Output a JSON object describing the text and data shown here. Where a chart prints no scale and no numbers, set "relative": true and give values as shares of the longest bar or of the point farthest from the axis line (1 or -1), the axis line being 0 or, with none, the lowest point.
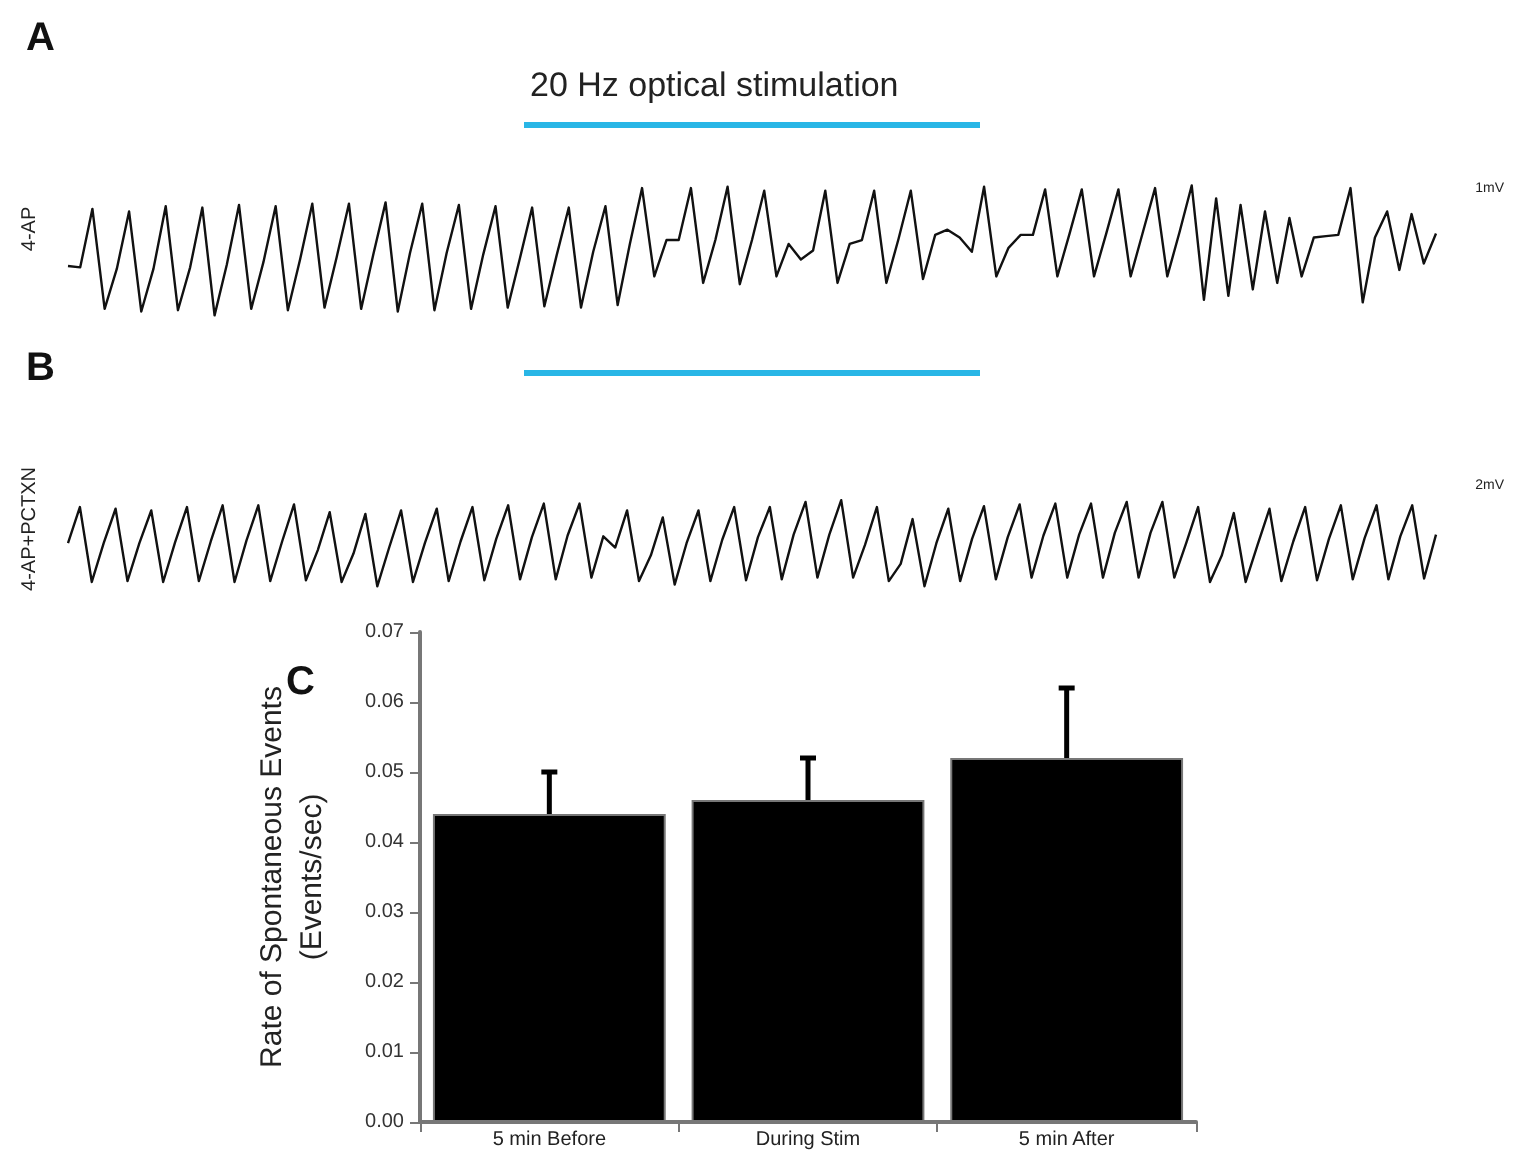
{
  "chart_data": [
    {
      "type": "line",
      "title": "A",
      "ylabel": "4-AP",
      "relative": true,
      "marker": "none",
      "annotations": [
        "20 Hz optical stimulation",
        "1mV"
      ],
      "categories": [
        null,
        null,
        null,
        null,
        null,
        null,
        null,
        null,
        null,
        null,
        null,
        null,
        null,
        null,
        null,
        null,
        null,
        null,
        null,
        null,
        null,
        null,
        null,
        null,
        null,
        null,
        null,
        null,
        null,
        null,
        null,
        null,
        null,
        null,
        null,
        null,
        null,
        null,
        null,
        null,
        null,
        null,
        null,
        null,
        null,
        null,
        null,
        null,
        null,
        null,
        null,
        null,
        null,
        null,
        null,
        null,
        null,
        null,
        null,
        null,
        null,
        null,
        null,
        null,
        null,
        null,
        null,
        null,
        null,
        null,
        null,
        null,
        null,
        null,
        null,
        null,
        null,
        null,
        null,
        null,
        null,
        null,
        null,
        null,
        null,
        null,
        null,
        null,
        null,
        null,
        null,
        null,
        null,
        null,
        null,
        null,
        null,
        null,
        null,
        null,
        null,
        null,
        null,
        null,
        null,
        null,
        null,
        null,
        null,
        null,
        null,
        null,
        null
      ],
      "series": [
        {
          "color": "#111111",
          "values": [
            0.38,
            0.37,
            0.82,
            0.05,
            0.36,
            0.8,
            0.03,
            0.36,
            0.84,
            0.04,
            0.37,
            0.83,
            0,
            0.39,
            0.85,
            0.05,
            0.41,
            0.84,
            0.04,
            0.43,
            0.86,
            0.06,
            0.45,
            0.86,
            0.05,
            0.47,
            0.87,
            0.03,
            0.48,
            0.86,
            0.04,
            0.48,
            0.85,
            0.05,
            0.47,
            0.84,
            0.06,
            0.44,
            0.83,
            0.07,
            0.46,
            0.83,
            0.06,
            0.49,
            0.84,
            0.08,
            0.55,
            0.98,
            0.3,
            0.58,
            0.58,
            0.98,
            0.25,
            0.58,
            0.99,
            0.24,
            0.58,
            0.96,
            0.3,
            0.55,
            0.43,
            0.5,
            0.96,
            0.25,
            0.55,
            0.58,
            0.96,
            0.25,
            0.59,
            0.96,
            0.28,
            0.62,
            0.66,
            0.6,
            0.49,
            0.99,
            0.3,
            0.52,
            0.62,
            0.62,
            0.97,
            0.3,
            0.63,
            0.97,
            0.3,
            0.63,
            0.97,
            0.3,
            0.64,
            0.98,
            0.3,
            0.64,
            1,
            0.12,
            0.9,
            0.15,
            0.85,
            0.2,
            0.8,
            0.25,
            0.75,
            0.3,
            0.6,
            0.61,
            0.62,
            0.98,
            0.1,
            0.6,
            0.8,
            0.35,
            0.78,
            0.4,
            0.63
          ]
        }
      ]
    },
    {
      "type": "line",
      "title": "B",
      "ylabel": "4-AP+PCTXN",
      "relative": true,
      "marker": "none",
      "annotations": [
        "2mV"
      ],
      "categories": [
        null,
        null,
        null,
        null,
        null,
        null,
        null,
        null,
        null,
        null,
        null,
        null,
        null,
        null,
        null,
        null,
        null,
        null,
        null,
        null,
        null,
        null,
        null,
        null,
        null,
        null,
        null,
        null,
        null,
        null,
        null,
        null,
        null,
        null,
        null,
        null,
        null,
        null,
        null,
        null,
        null,
        null,
        null,
        null,
        null,
        null,
        null,
        null,
        null,
        null,
        null,
        null,
        null,
        null,
        null,
        null,
        null,
        null,
        null,
        null,
        null,
        null,
        null,
        null,
        null,
        null,
        null,
        null,
        null,
        null,
        null,
        null,
        null,
        null,
        null,
        null,
        null,
        null,
        null,
        null,
        null,
        null,
        null,
        null,
        null,
        null,
        null,
        null,
        null,
        null,
        null,
        null,
        null,
        null,
        null,
        null,
        null,
        null,
        null,
        null,
        null,
        null,
        null,
        null,
        null,
        null,
        null,
        null,
        null,
        null,
        null,
        null,
        null,
        null,
        null,
        null
      ],
      "series": [
        {
          "color": "#111111",
          "values": [
            0.5,
            0.92,
            0.05,
            0.5,
            0.9,
            0.06,
            0.5,
            0.88,
            0.05,
            0.51,
            0.92,
            0.06,
            0.52,
            0.94,
            0.05,
            0.53,
            0.94,
            0.06,
            0.52,
            0.95,
            0.07,
            0.42,
            0.86,
            0.05,
            0.38,
            0.84,
            0,
            0.45,
            0.88,
            0.05,
            0.5,
            0.9,
            0.06,
            0.52,
            0.92,
            0.07,
            0.55,
            0.94,
            0.08,
            0.57,
            0.96,
            0.08,
            0.59,
            0.96,
            0.1,
            0.58,
            0.45,
            0.88,
            0.06,
            0.36,
            0.8,
            0.02,
            0.5,
            0.88,
            0.06,
            0.54,
            0.92,
            0.07,
            0.57,
            0.92,
            0.08,
            0.6,
            0.98,
            0.1,
            0.6,
            1,
            0.1,
            0.48,
            0.92,
            0.06,
            0.26,
            0.78,
            0,
            0.5,
            0.9,
            0.06,
            0.55,
            0.93,
            0.08,
            0.57,
            0.95,
            0.1,
            0.59,
            0.96,
            0.1,
            0.6,
            0.96,
            0.1,
            0.62,
            0.98,
            0.1,
            0.62,
            0.98,
            0.1,
            0.5,
            0.92,
            0.05,
            0.36,
            0.85,
            0.05,
            0.48,
            0.9,
            0.06,
            0.52,
            0.92,
            0.07,
            0.55,
            0.94,
            0.08,
            0.56,
            0.94,
            0.08,
            0.58,
            0.94,
            0.09,
            0.6
          ]
        }
      ]
    },
    {
      "type": "bar",
      "title": "C",
      "ylabel": "Rate of Spontaneous Events\n(Events/sec)",
      "categories": [
        "5 min Before",
        "During Stim",
        "5 min After"
      ],
      "series": [
        {
          "color": "#000000",
          "values": [
            0.044,
            0.046,
            0.052
          ],
          "errors": [
            [
              0.044,
              0.05
            ],
            [
              0.046,
              0.052
            ],
            [
              0.052,
              0.062
            ]
          ]
        }
      ],
      "ylim": [
        0,
        0.07
      ],
      "yticks": [
        {
          "value": 0,
          "label": "0.00"
        },
        {
          "value": 0.01,
          "label": "0.01"
        },
        {
          "value": 0.02,
          "label": "0.02"
        },
        {
          "value": 0.03,
          "label": "0.03"
        },
        {
          "value": 0.04,
          "label": "0.04"
        },
        {
          "value": 0.05,
          "label": "0.05"
        },
        {
          "value": 0.06,
          "label": "0.06"
        },
        {
          "value": 0.07,
          "label": "0.07"
        }
      ]
    }
  ]
}
